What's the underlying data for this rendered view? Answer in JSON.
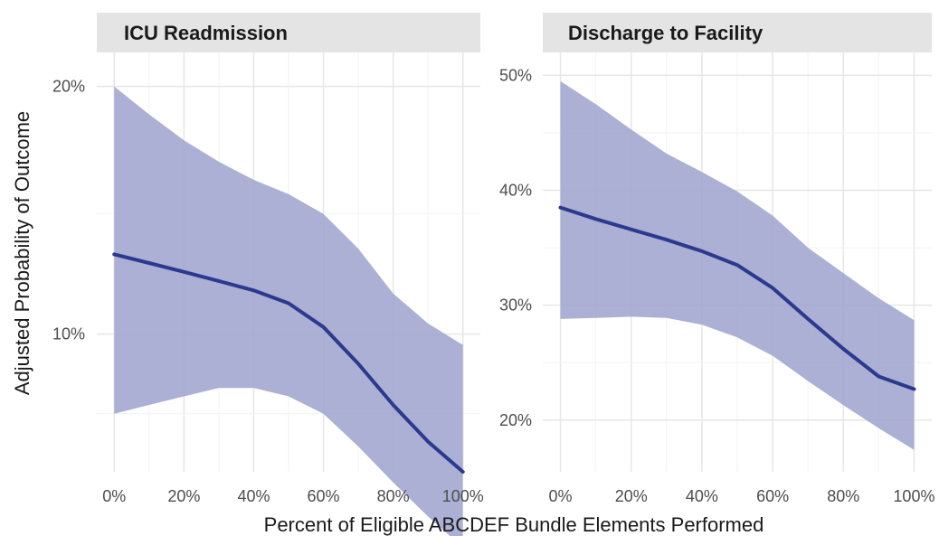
{
  "chart_data": {
    "type": "line",
    "xlabel": "Percent of Eligible ABCDEF Bundle Elements Performed",
    "ylabel": "Adjusted Probability of Outcome",
    "colors": {
      "line": "#2b3990",
      "ribbon": "#9da2cc",
      "strip": "#e4e4e4",
      "grid_major": "#e6e6e6",
      "grid_minor": "#f2f2f2"
    },
    "grid": true,
    "legend": "none",
    "panels": [
      {
        "title": "ICU Readmission",
        "x_ticks": [
          "0%",
          "20%",
          "40%",
          "60%",
          "80%",
          "100%"
        ],
        "xlim": [
          -0.05,
          1.05
        ],
        "y_scale": "log",
        "y_ticks": [
          "10%",
          "20%"
        ],
        "y_tick_values": [
          0.1,
          0.2
        ],
        "y_minor_values": [
          0.08,
          0.14
        ],
        "ylim": [
          0.068,
          0.22
        ],
        "series": [
          {
            "x": [
              0,
              0.1,
              0.2,
              0.3,
              0.4,
              0.5,
              0.6,
              0.7,
              0.8,
              0.9,
              1.0
            ],
            "y": [
              0.125,
              0.122,
              0.119,
              0.116,
              0.113,
              0.109,
              0.102,
              0.092,
              0.082,
              0.074,
              0.068
            ],
            "lower": [
              0.08,
              0.082,
              0.084,
              0.086,
              0.086,
              0.084,
              0.08,
              0.073,
              0.066,
              0.06,
              0.055
            ],
            "upper": [
              0.2,
              0.185,
              0.172,
              0.162,
              0.154,
              0.148,
              0.14,
              0.127,
              0.112,
              0.103,
              0.097
            ]
          }
        ]
      },
      {
        "title": "Discharge to Facility",
        "x_ticks": [
          "0%",
          "20%",
          "40%",
          "60%",
          "80%",
          "100%"
        ],
        "xlim": [
          -0.05,
          1.05
        ],
        "y_scale": "linear",
        "y_ticks": [
          "20%",
          "30%",
          "40%",
          "50%"
        ],
        "y_tick_values": [
          0.2,
          0.3,
          0.4,
          0.5
        ],
        "y_minor_values": [
          0.25,
          0.35,
          0.45
        ],
        "ylim": [
          0.155,
          0.52
        ],
        "series": [
          {
            "x": [
              0,
              0.1,
              0.2,
              0.3,
              0.4,
              0.5,
              0.6,
              0.7,
              0.8,
              0.9,
              1.0
            ],
            "y": [
              0.385,
              0.375,
              0.366,
              0.357,
              0.347,
              0.335,
              0.315,
              0.288,
              0.262,
              0.238,
              0.227
            ],
            "lower": [
              0.288,
              0.289,
              0.29,
              0.289,
              0.283,
              0.272,
              0.256,
              0.234,
              0.213,
              0.193,
              0.174
            ],
            "upper": [
              0.495,
              0.475,
              0.453,
              0.432,
              0.416,
              0.399,
              0.378,
              0.35,
              0.328,
              0.306,
              0.287
            ]
          }
        ]
      }
    ]
  }
}
